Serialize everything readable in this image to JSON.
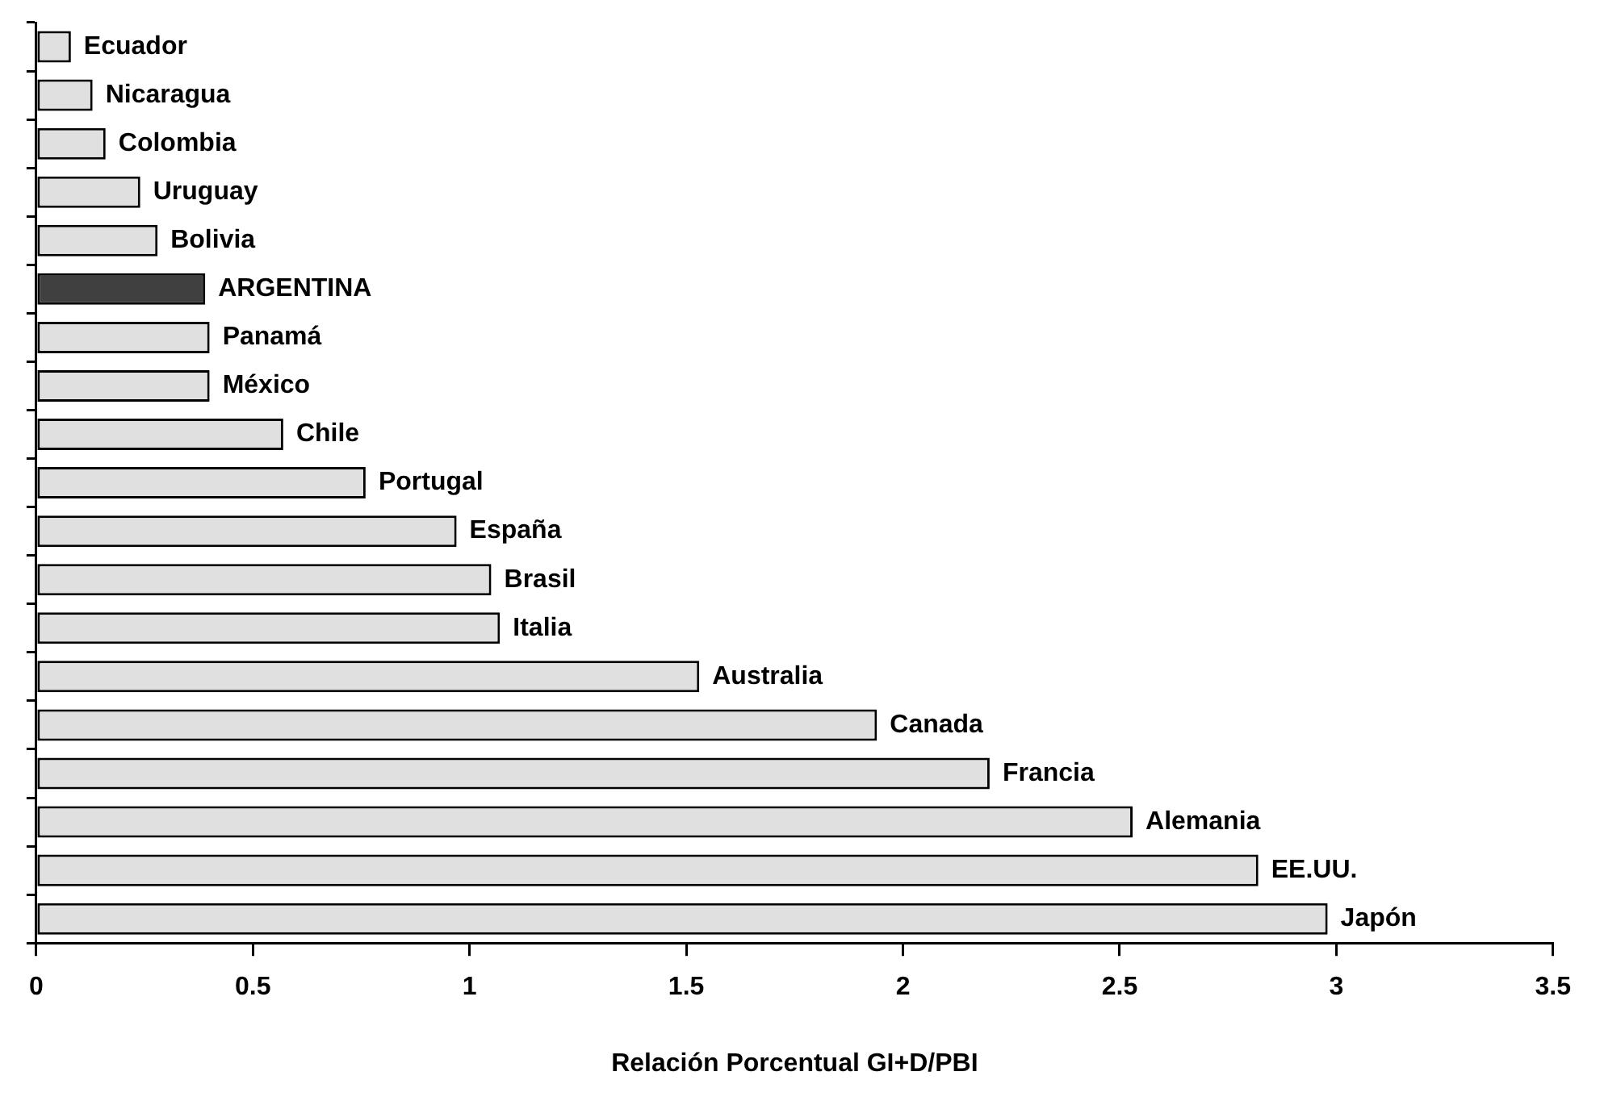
{
  "chart_data": {
    "type": "bar",
    "orientation": "horizontal",
    "xlabel": "Relación Porcentual GI+D/PBI",
    "categories": [
      "Ecuador",
      "Nicaragua",
      "Colombia",
      "Uruguay",
      "Bolivia",
      "ARGENTINA",
      "Panamá",
      "México",
      "Chile",
      "Portugal",
      "España",
      "Brasil",
      "Italia",
      "Australia",
      "Canada",
      "Francia",
      "Alemania",
      "EE.UU.",
      "Japón"
    ],
    "values": [
      0.08,
      0.13,
      0.16,
      0.24,
      0.28,
      0.39,
      0.4,
      0.4,
      0.57,
      0.76,
      0.97,
      1.05,
      1.07,
      1.53,
      1.94,
      2.2,
      2.53,
      2.82,
      2.98
    ],
    "colors": [
      "#e0e0e0",
      "#e0e0e0",
      "#e0e0e0",
      "#e0e0e0",
      "#e0e0e0",
      "#404040",
      "#e0e0e0",
      "#e0e0e0",
      "#e0e0e0",
      "#e0e0e0",
      "#e0e0e0",
      "#e0e0e0",
      "#e0e0e0",
      "#e0e0e0",
      "#e0e0e0",
      "#e0e0e0",
      "#e0e0e0",
      "#e0e0e0",
      "#e0e0e0"
    ],
    "xlim": [
      0,
      3.5
    ],
    "xticks": [
      0,
      0.5,
      1,
      1.5,
      2,
      2.5,
      3,
      3.5
    ],
    "tick_labels": "x",
    "grid": false,
    "legend": false
  }
}
